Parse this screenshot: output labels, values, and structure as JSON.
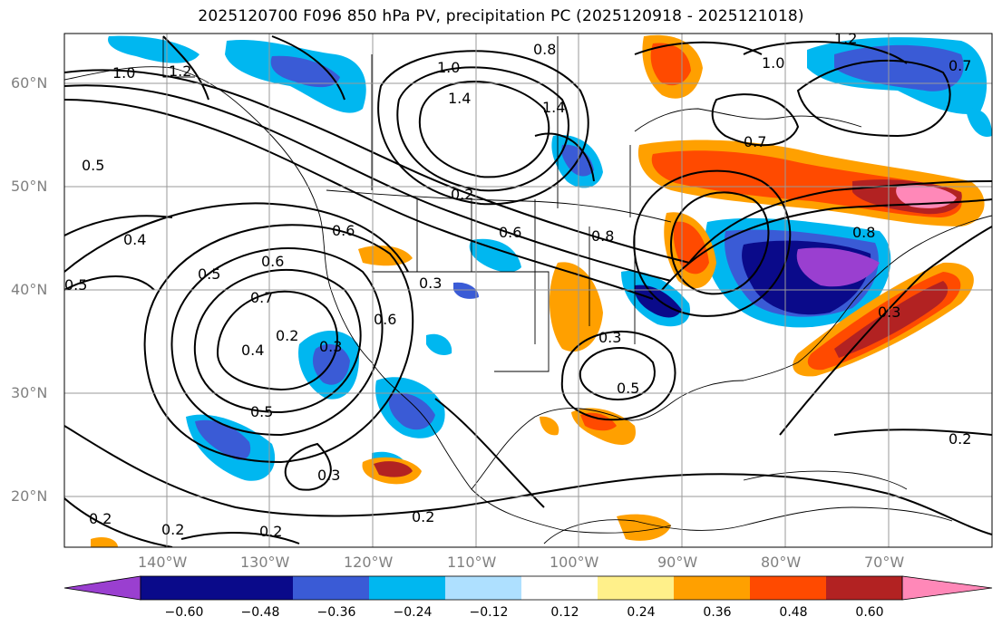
{
  "title": "2025120700 F096 850 hPa PV, precipitation PC (2025120918 - 2025121018)",
  "latitude_labels": [
    "60°N",
    "50°N",
    "40°N",
    "30°N",
    "20°N"
  ],
  "longitude_labels": [
    "140°W",
    "130°W",
    "120°W",
    "110°W",
    "100°W",
    "90°W",
    "80°W",
    "70°W"
  ],
  "colorbar": {
    "ticks": [
      "−0.60",
      "−0.48",
      "−0.36",
      "−0.24",
      "−0.12",
      "0.12",
      "0.24",
      "0.36",
      "0.48",
      "0.60"
    ],
    "colors": [
      "#9a3fd0",
      "#0a0a8a",
      "#3a5bd6",
      "#00b7f0",
      "#aee0ff",
      "#ffffff",
      "#fff08a",
      "#ffa000",
      "#ff4a00",
      "#b22222",
      "#ff88b8"
    ]
  },
  "contour_labels": [
    "1.0",
    "1.2",
    "1.4",
    "0.8",
    "1.0",
    "1.4",
    "1.0",
    "0.7",
    "0.7",
    "1.2",
    "0.5",
    "0.4",
    "0.6",
    "0.2",
    "0.6",
    "0.8",
    "0.8",
    "0.3",
    "0.5",
    "0.6",
    "0.7",
    "0.5",
    "0.4",
    "0.2",
    "0.3",
    "0.6",
    "0.3",
    "0.3",
    "0.5",
    "0.5",
    "0.3",
    "0.2",
    "0.2",
    "0.2",
    "0.2",
    "0.2"
  ]
}
